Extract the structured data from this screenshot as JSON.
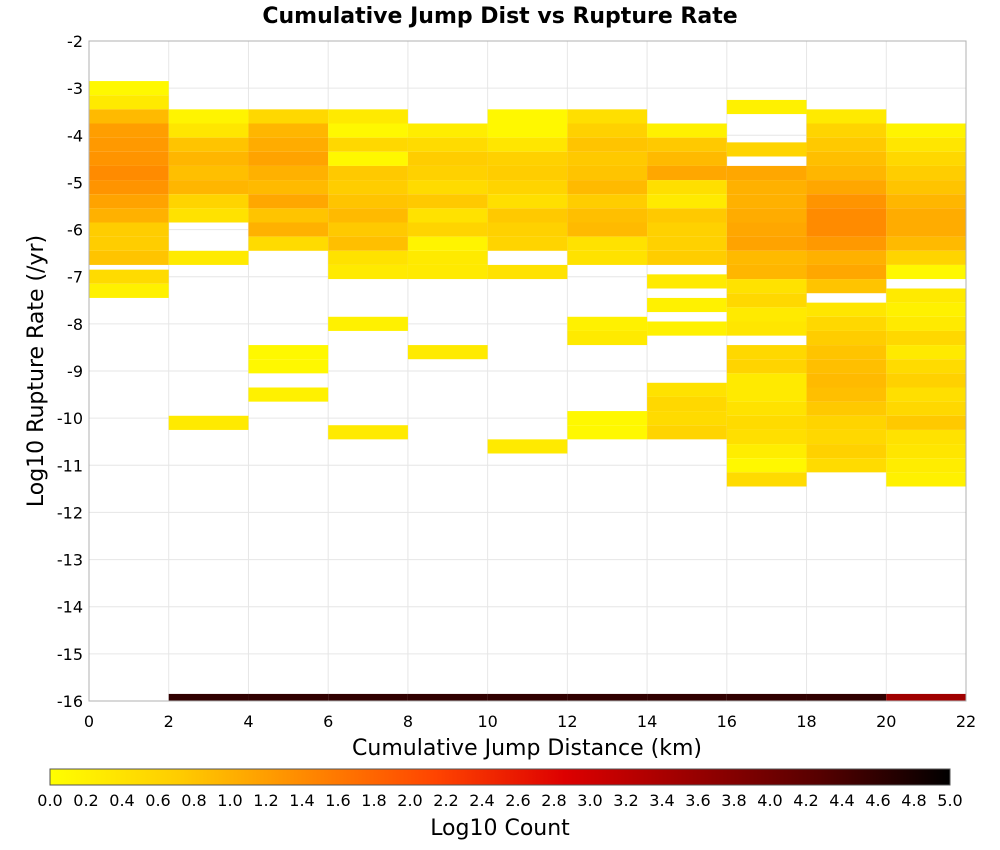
{
  "chart_data": {
    "type": "heatmap",
    "title": "Cumulative Jump Dist vs Rupture Rate",
    "xlabel": "Cumulative Jump Distance (km)",
    "ylabel": "Log10 Rupture Rate (/yr)",
    "xlim": [
      0,
      22
    ],
    "ylim": [
      -16,
      -2
    ],
    "x_ticks": [
      "0",
      "2",
      "4",
      "6",
      "8",
      "10",
      "12",
      "14",
      "16",
      "18",
      "20",
      "22"
    ],
    "y_ticks": [
      "-2",
      "-3",
      "-4",
      "-5",
      "-6",
      "-7",
      "-8",
      "-9",
      "-10",
      "-11",
      "-12",
      "-13",
      "-14",
      "-15",
      "-16"
    ],
    "grid": true,
    "colorbar": {
      "label": "Log10 Count",
      "range": [
        0,
        5
      ],
      "ticks": [
        "0.0",
        "0.2",
        "0.4",
        "0.6",
        "0.8",
        "1.0",
        "1.2",
        "1.4",
        "1.6",
        "1.8",
        "2.0",
        "2.2",
        "2.4",
        "2.6",
        "2.8",
        "3.0",
        "3.2",
        "3.4",
        "3.6",
        "3.8",
        "4.0",
        "4.2",
        "4.4",
        "4.6",
        "4.8",
        "5.0"
      ],
      "colormap": [
        "#ffff00",
        "#ffcc00",
        "#ff8800",
        "#ff4400",
        "#dd0000",
        "#990000",
        "#550000",
        "#000000"
      ]
    },
    "x_bin_width": 2,
    "y_bin_height": 0.3,
    "columns": [
      {
        "x": 1,
        "cells": [
          [
            -3.0,
            0.1
          ],
          [
            -3.3,
            0.3
          ],
          [
            -3.6,
            0.9
          ],
          [
            -3.9,
            1.2
          ],
          [
            -4.2,
            1.25
          ],
          [
            -4.5,
            1.3
          ],
          [
            -4.8,
            1.4
          ],
          [
            -5.1,
            1.3
          ],
          [
            -5.4,
            1.15
          ],
          [
            -5.7,
            1.0
          ],
          [
            -6.0,
            0.7
          ],
          [
            -6.3,
            0.7
          ],
          [
            -6.6,
            0.8
          ],
          [
            -7.0,
            0.5
          ],
          [
            -7.3,
            0.2
          ]
        ]
      },
      {
        "x": 3,
        "cells": [
          [
            -3.6,
            0.15
          ],
          [
            -3.9,
            0.35
          ],
          [
            -4.2,
            0.8
          ],
          [
            -4.5,
            0.95
          ],
          [
            -4.8,
            0.85
          ],
          [
            -5.1,
            0.95
          ],
          [
            -5.4,
            0.6
          ],
          [
            -5.7,
            0.4
          ],
          [
            -6.6,
            0.3
          ],
          [
            -10.1,
            0.3
          ],
          [
            -16.0,
            4.6
          ]
        ]
      },
      {
        "x": 5,
        "cells": [
          [
            -3.6,
            0.55
          ],
          [
            -3.9,
            0.95
          ],
          [
            -4.2,
            1.05
          ],
          [
            -4.5,
            1.15
          ],
          [
            -4.8,
            1.0
          ],
          [
            -5.1,
            0.9
          ],
          [
            -5.4,
            1.1
          ],
          [
            -5.7,
            0.8
          ],
          [
            -6.0,
            1.0
          ],
          [
            -6.3,
            0.5
          ],
          [
            -8.6,
            0.1
          ],
          [
            -8.9,
            0.1
          ],
          [
            -9.5,
            0.2
          ],
          [
            -16.0,
            4.6
          ]
        ]
      },
      {
        "x": 7,
        "cells": [
          [
            -3.6,
            0.3
          ],
          [
            -3.9,
            0.1
          ],
          [
            -4.2,
            0.55
          ],
          [
            -4.5,
            0.1
          ],
          [
            -4.8,
            0.75
          ],
          [
            -5.1,
            0.7
          ],
          [
            -5.4,
            0.8
          ],
          [
            -5.7,
            0.9
          ],
          [
            -6.0,
            0.75
          ],
          [
            -6.3,
            0.85
          ],
          [
            -6.6,
            0.4
          ],
          [
            -6.9,
            0.3
          ],
          [
            -8.0,
            0.2
          ],
          [
            -10.3,
            0.3
          ],
          [
            -16.0,
            4.6
          ]
        ]
      },
      {
        "x": 9,
        "cells": [
          [
            -3.9,
            0.25
          ],
          [
            -4.2,
            0.5
          ],
          [
            -4.5,
            0.7
          ],
          [
            -4.8,
            0.65
          ],
          [
            -5.1,
            0.5
          ],
          [
            -5.4,
            0.75
          ],
          [
            -5.7,
            0.4
          ],
          [
            -6.0,
            0.6
          ],
          [
            -6.3,
            0.15
          ],
          [
            -6.6,
            0.3
          ],
          [
            -6.9,
            0.3
          ],
          [
            -8.6,
            0.3
          ],
          [
            -16.0,
            4.6
          ]
        ]
      },
      {
        "x": 11,
        "cells": [
          [
            -3.6,
            0.1
          ],
          [
            -3.9,
            0.1
          ],
          [
            -4.2,
            0.35
          ],
          [
            -4.5,
            0.65
          ],
          [
            -4.8,
            0.7
          ],
          [
            -5.1,
            0.6
          ],
          [
            -5.4,
            0.45
          ],
          [
            -5.7,
            0.75
          ],
          [
            -6.0,
            0.65
          ],
          [
            -6.3,
            0.6
          ],
          [
            -6.9,
            0.4
          ],
          [
            -10.6,
            0.3
          ],
          [
            -16.0,
            4.6
          ]
        ]
      },
      {
        "x": 13,
        "cells": [
          [
            -3.6,
            0.45
          ],
          [
            -3.9,
            0.65
          ],
          [
            -4.2,
            0.8
          ],
          [
            -4.5,
            0.75
          ],
          [
            -4.8,
            0.8
          ],
          [
            -5.1,
            0.9
          ],
          [
            -5.4,
            0.7
          ],
          [
            -5.7,
            0.85
          ],
          [
            -6.0,
            0.9
          ],
          [
            -6.3,
            0.4
          ],
          [
            -6.6,
            0.4
          ],
          [
            -8.0,
            0.2
          ],
          [
            -8.3,
            0.3
          ],
          [
            -10.0,
            0.1
          ],
          [
            -10.3,
            0.1
          ],
          [
            -16.0,
            4.6
          ]
        ]
      },
      {
        "x": 15,
        "cells": [
          [
            -3.9,
            0.2
          ],
          [
            -4.2,
            0.75
          ],
          [
            -4.5,
            0.9
          ],
          [
            -4.8,
            1.1
          ],
          [
            -5.1,
            0.45
          ],
          [
            -5.4,
            0.3
          ],
          [
            -5.7,
            0.75
          ],
          [
            -6.0,
            0.65
          ],
          [
            -6.3,
            0.65
          ],
          [
            -6.6,
            0.7
          ],
          [
            -7.1,
            0.3
          ],
          [
            -7.6,
            0.2
          ],
          [
            -8.1,
            0.2
          ],
          [
            -9.4,
            0.4
          ],
          [
            -9.7,
            0.55
          ],
          [
            -10.0,
            0.5
          ],
          [
            -10.3,
            0.6
          ],
          [
            -16.0,
            4.6
          ]
        ]
      },
      {
        "x": 17,
        "cells": [
          [
            -3.4,
            0.2
          ],
          [
            -4.3,
            0.6
          ],
          [
            -4.8,
            1.1
          ],
          [
            -5.1,
            1.0
          ],
          [
            -5.4,
            1.0
          ],
          [
            -5.7,
            1.05
          ],
          [
            -6.0,
            1.1
          ],
          [
            -6.3,
            1.15
          ],
          [
            -6.6,
            0.9
          ],
          [
            -6.9,
            0.95
          ],
          [
            -7.2,
            0.4
          ],
          [
            -7.5,
            0.55
          ],
          [
            -7.8,
            0.3
          ],
          [
            -8.1,
            0.35
          ],
          [
            -8.6,
            0.55
          ],
          [
            -8.9,
            0.6
          ],
          [
            -9.2,
            0.3
          ],
          [
            -9.5,
            0.3
          ],
          [
            -9.8,
            0.4
          ],
          [
            -10.1,
            0.5
          ],
          [
            -10.4,
            0.45
          ],
          [
            -10.7,
            0.25
          ],
          [
            -11.0,
            0.1
          ],
          [
            -11.3,
            0.5
          ],
          [
            -16.0,
            4.6
          ]
        ]
      },
      {
        "x": 19,
        "cells": [
          [
            -3.6,
            0.3
          ],
          [
            -3.9,
            0.6
          ],
          [
            -4.2,
            0.75
          ],
          [
            -4.5,
            0.85
          ],
          [
            -4.8,
            0.95
          ],
          [
            -5.1,
            1.1
          ],
          [
            -5.4,
            1.3
          ],
          [
            -5.7,
            1.4
          ],
          [
            -6.0,
            1.4
          ],
          [
            -6.3,
            1.25
          ],
          [
            -6.6,
            1.0
          ],
          [
            -6.9,
            1.1
          ],
          [
            -7.2,
            0.8
          ],
          [
            -7.7,
            0.35
          ],
          [
            -8.0,
            0.55
          ],
          [
            -8.3,
            0.7
          ],
          [
            -8.6,
            0.8
          ],
          [
            -8.9,
            0.85
          ],
          [
            -9.2,
            0.9
          ],
          [
            -9.5,
            0.85
          ],
          [
            -9.8,
            0.75
          ],
          [
            -10.1,
            0.6
          ],
          [
            -10.4,
            0.55
          ],
          [
            -10.7,
            0.65
          ],
          [
            -11.0,
            0.5
          ],
          [
            -16.0,
            4.6
          ]
        ]
      },
      {
        "x": 21,
        "cells": [
          [
            -3.9,
            0.15
          ],
          [
            -4.2,
            0.35
          ],
          [
            -4.5,
            0.55
          ],
          [
            -4.8,
            0.7
          ],
          [
            -5.1,
            0.8
          ],
          [
            -5.4,
            0.95
          ],
          [
            -5.7,
            1.05
          ],
          [
            -6.0,
            1.05
          ],
          [
            -6.3,
            0.9
          ],
          [
            -6.6,
            0.6
          ],
          [
            -6.9,
            0.1
          ],
          [
            -7.4,
            0.3
          ],
          [
            -7.7,
            0.2
          ],
          [
            -8.0,
            0.3
          ],
          [
            -8.3,
            0.55
          ],
          [
            -8.6,
            0.3
          ],
          [
            -8.9,
            0.5
          ],
          [
            -9.2,
            0.65
          ],
          [
            -9.5,
            0.45
          ],
          [
            -9.8,
            0.55
          ],
          [
            -10.1,
            0.75
          ],
          [
            -10.4,
            0.4
          ],
          [
            -10.7,
            0.35
          ],
          [
            -11.0,
            0.25
          ],
          [
            -11.3,
            0.2
          ],
          [
            -16.0,
            3.5
          ]
        ]
      }
    ]
  }
}
